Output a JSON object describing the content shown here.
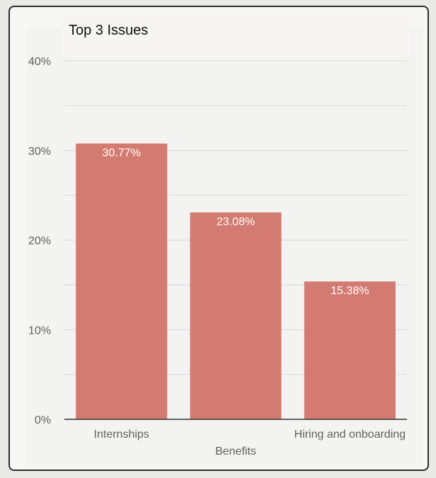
{
  "chart_data": {
    "type": "bar",
    "title": "Top 3 Issues",
    "xlabel": "Benefits",
    "ylabel": "",
    "categories": [
      "Internships",
      "",
      "Hiring and onboarding"
    ],
    "values": [
      30.77,
      23.08,
      15.38
    ],
    "value_labels": [
      "30.77%",
      "23.08%",
      "15.38%"
    ],
    "ylim": [
      0,
      40
    ],
    "y_ticks": [
      {
        "value": 0,
        "label": "0%"
      },
      {
        "value": 10,
        "label": "10%"
      },
      {
        "value": 20,
        "label": "20%"
      },
      {
        "value": 30,
        "label": "30%"
      },
      {
        "value": 40,
        "label": "40%"
      }
    ],
    "minor_gridlines": [
      5,
      15,
      25,
      35
    ],
    "grid": true,
    "bar_color": "#d37b71",
    "grid_color": "#d8d8d8",
    "axis_color": "#333333"
  }
}
